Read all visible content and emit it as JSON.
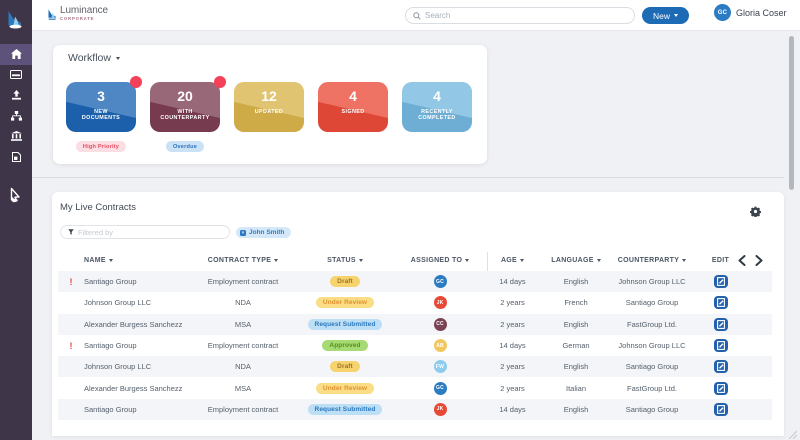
{
  "brand": {
    "name": "Luminance",
    "sub": "CORPORATE"
  },
  "topbar": {
    "search_placeholder": "Search",
    "new_button": "New",
    "user": {
      "initials": "GC",
      "name": "Gloria Coser"
    }
  },
  "sidebar": {
    "items": [
      {
        "icon": "home",
        "active": true
      },
      {
        "icon": "card",
        "active": false
      },
      {
        "icon": "upload",
        "active": false
      },
      {
        "icon": "sitemap",
        "active": false
      },
      {
        "icon": "bank",
        "active": false
      },
      {
        "icon": "file",
        "active": false
      }
    ]
  },
  "workflow": {
    "title": "Workflow",
    "tiles": [
      {
        "value": "3",
        "label": "NEW\nDOCUMENTS",
        "color": "#1e65b4",
        "dot": true,
        "tag": {
          "text": "High Priority",
          "bg": "#fadee3",
          "fg": "#e84c61"
        }
      },
      {
        "value": "20",
        "label": "WITH\nCOUNTERPARTY",
        "color": "#7c3e52",
        "dot": true,
        "tag": {
          "text": "Overdue",
          "bg": "#cbe2f6",
          "fg": "#2a72bb"
        }
      },
      {
        "value": "12",
        "label": "UPDATED",
        "color": "#d9b44a",
        "dot": false,
        "tag": null
      },
      {
        "value": "4",
        "label": "SIGNED",
        "color": "#ea4b38",
        "dot": false,
        "tag": null
      },
      {
        "value": "4",
        "label": "RECENTLY\nCOMPLETED",
        "color": "#74b7df",
        "dot": false,
        "tag": null
      }
    ]
  },
  "contracts": {
    "title": "My Live Contracts",
    "filter_placeholder": "Filtered by",
    "filter_chip": "John Smith",
    "columns": [
      "NAME",
      "CONTRACT TYPE",
      "STATUS",
      "ASSIGNED TO",
      "AGE",
      "LANGUAGE",
      "COUNTERPARTY",
      "EDIT"
    ],
    "status_styles": {
      "draft": {
        "bg": "#f7d36e",
        "fg": "#9c7326"
      },
      "review": {
        "bg": "#fadd85",
        "fg": "#e0912f"
      },
      "request": {
        "bg": "#bcdff6",
        "fg": "#2877be"
      },
      "approved": {
        "bg": "#a6da73",
        "fg": "#568f1d"
      }
    },
    "rows": [
      {
        "alert": true,
        "name": "Santiago Group",
        "type": "Employment contract",
        "status": "Draft",
        "status_kind": "draft",
        "assignee": {
          "initials": "GC",
          "color": "#2c7cc3"
        },
        "age": "14 days",
        "language": "English",
        "counterparty": "Johnson Group LLC"
      },
      {
        "alert": false,
        "name": "Johnson Group LLC",
        "type": "NDA",
        "status": "Under Review",
        "status_kind": "review",
        "assignee": {
          "initials": "JK",
          "color": "#e64a36"
        },
        "age": "2 years",
        "language": "French",
        "counterparty": "Santiago Group"
      },
      {
        "alert": false,
        "name": "Alexander Burgess Sanchezz",
        "type": "MSA",
        "status": "Request Submitted",
        "status_kind": "request",
        "assignee": {
          "initials": "CC",
          "color": "#794354"
        },
        "age": "2 years",
        "language": "English",
        "counterparty": "FastGroup Ltd."
      },
      {
        "alert": true,
        "name": "Santiago Group",
        "type": "Employment contract",
        "status": "Approved",
        "status_kind": "approved",
        "assignee": {
          "initials": "AB",
          "color": "#f4c65f"
        },
        "age": "14 days",
        "language": "German",
        "counterparty": "Johnson Group LLC"
      },
      {
        "alert": false,
        "name": "Johnson Group LLC",
        "type": "NDA",
        "status": "Draft",
        "status_kind": "draft",
        "assignee": {
          "initials": "FW",
          "color": "#8fcbec"
        },
        "age": "2 years",
        "language": "English",
        "counterparty": "Santiago Group"
      },
      {
        "alert": false,
        "name": "Alexander Burgess Sanchezz",
        "type": "MSA",
        "status": "Under Review",
        "status_kind": "review",
        "assignee": {
          "initials": "GC",
          "color": "#2c7cc3"
        },
        "age": "2 years",
        "language": "Italian",
        "counterparty": "FastGroup Ltd."
      },
      {
        "alert": false,
        "name": "Santiago Group",
        "type": "Employment contract",
        "status": "Request Submitted",
        "status_kind": "request",
        "assignee": {
          "initials": "JK",
          "color": "#e64a36"
        },
        "age": "14 days",
        "language": "English",
        "counterparty": "Santiago Group"
      }
    ]
  }
}
